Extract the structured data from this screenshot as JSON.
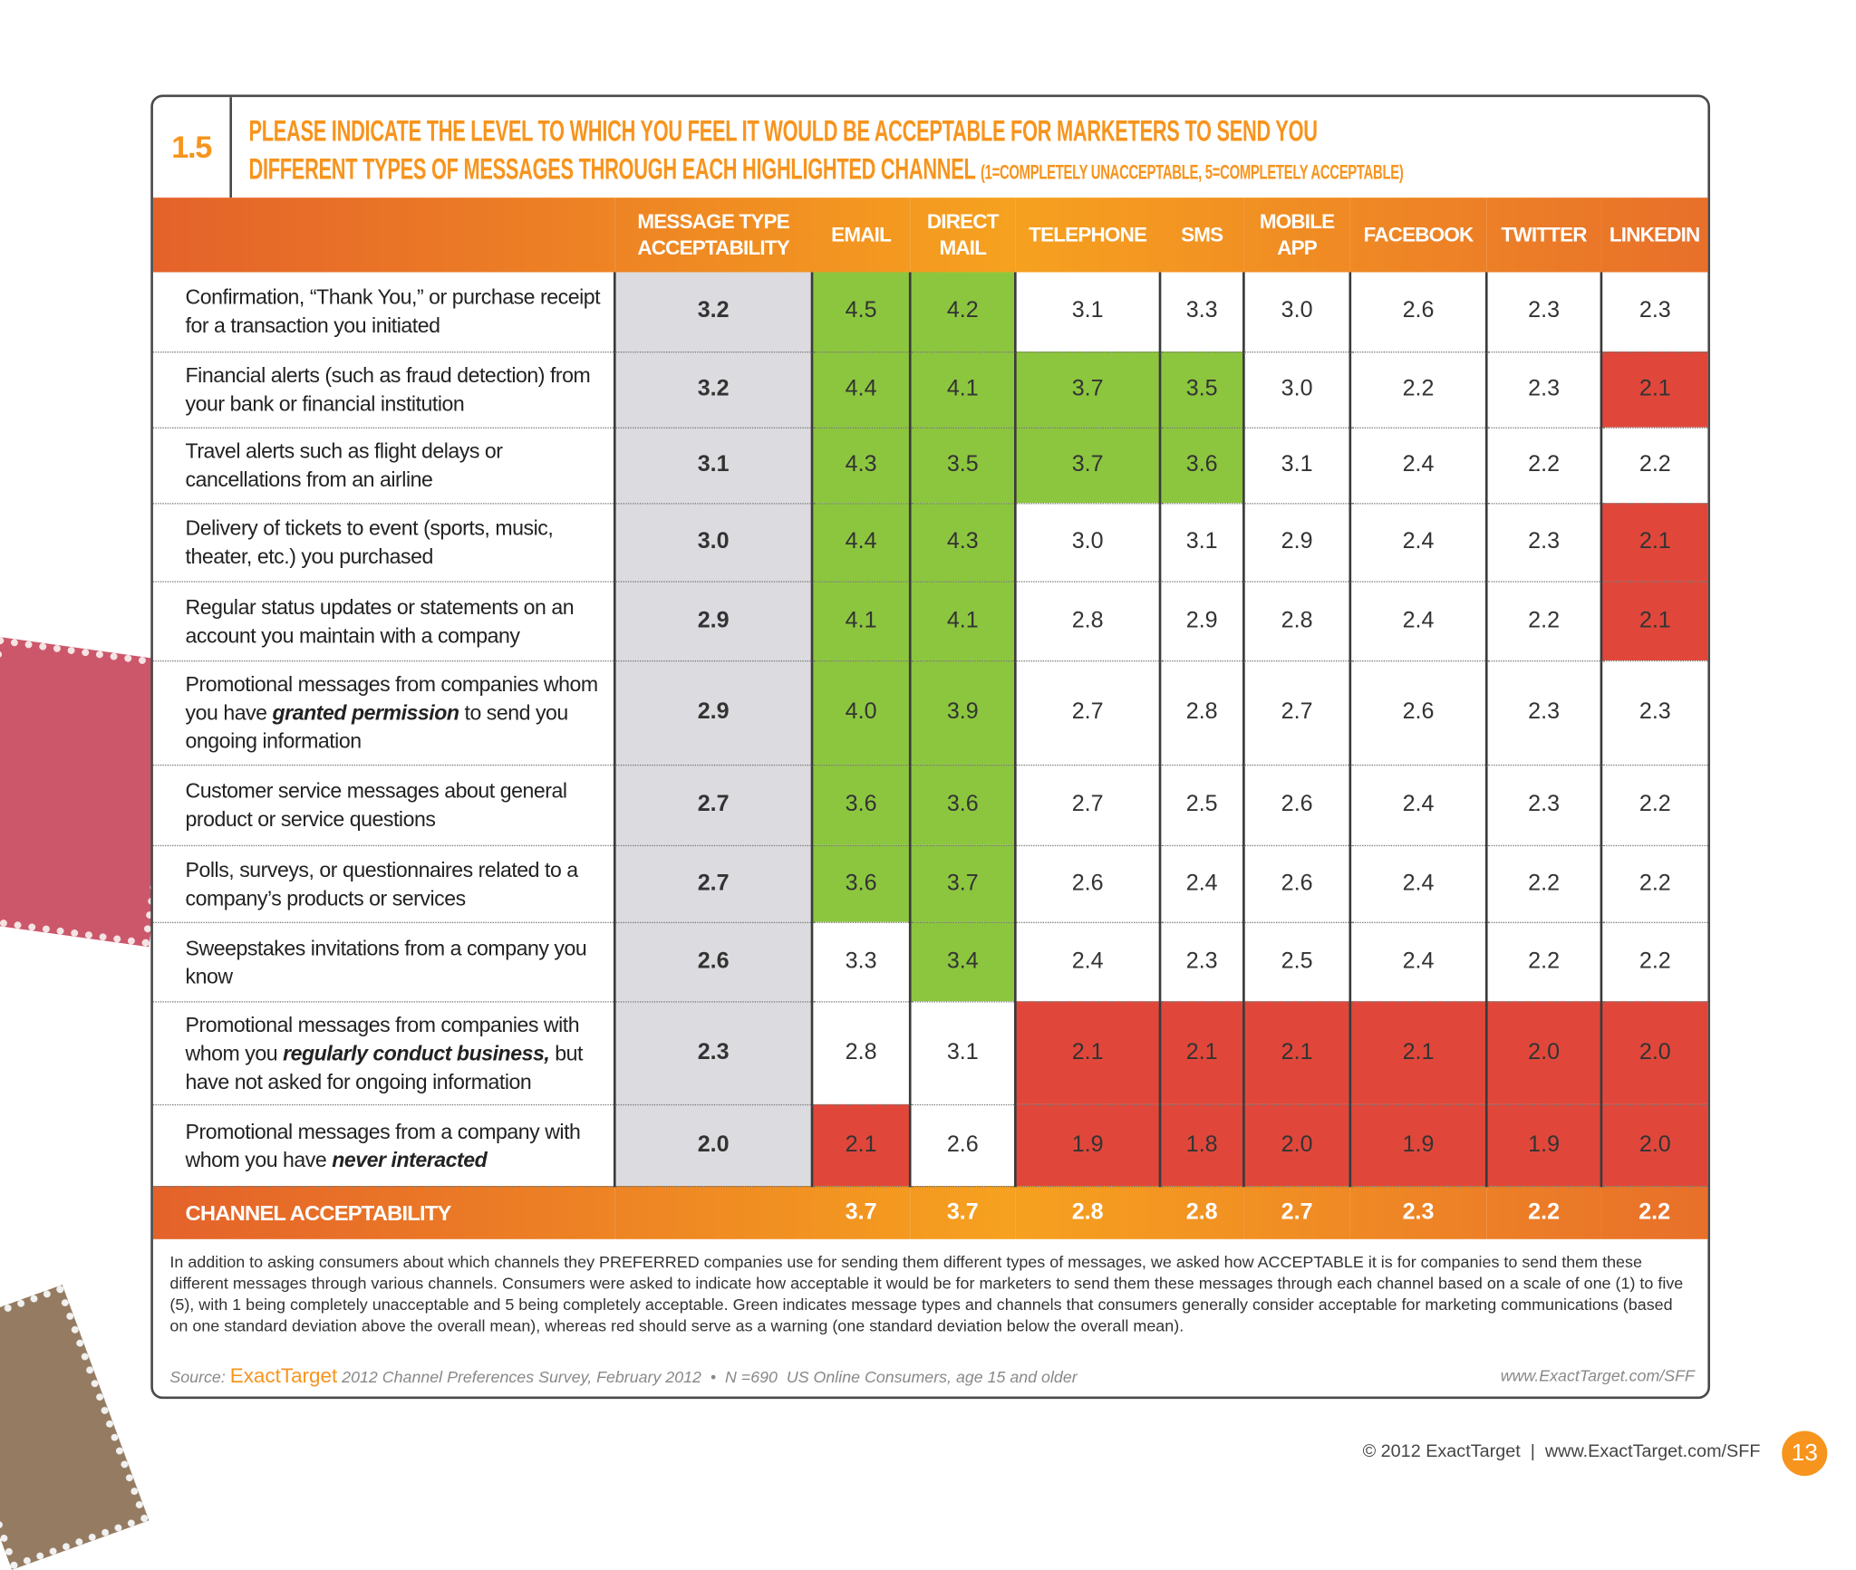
{
  "header": {
    "number": "1.5",
    "title_lines": [
      "PLEASE INDICATE THE LEVEL TO WHICH YOU FEEL IT WOULD BE ACCEPTABLE FOR MARKETERS TO SEND YOU",
      "DIFFERENT TYPES OF MESSAGES THROUGH EACH HIGHLIGHTED CHANNEL"
    ],
    "scale_note": "(1=COMPLETELY UNACCEPTABLE, 5=COMPLETELY ACCEPTABLE)"
  },
  "highlight_colors": {
    "green": "#8cc63f",
    "red": "#e0473a",
    "gray": "#dcdce0"
  },
  "table": {
    "columns": [
      "MESSAGE TYPE ACCEPTABILITY",
      "EMAIL",
      "DIRECT MAIL",
      "TELEPHONE",
      "SMS",
      "MOBILE APP",
      "FACEBOOK",
      "TWITTER",
      "LINKEDIN"
    ],
    "rows": [
      {
        "label": [
          {
            "text": "Confirmation, “Thank You,” or purchase receipt for a transaction you initiated"
          }
        ],
        "type_value": "3.2",
        "values": [
          "4.5",
          "4.2",
          "3.1",
          "3.3",
          "3.0",
          "2.6",
          "2.3",
          "2.3"
        ],
        "highlights": [
          "green",
          "green",
          null,
          null,
          null,
          null,
          null,
          null
        ]
      },
      {
        "label": [
          {
            "text": "Financial alerts (such as fraud detection) from your bank or financial institution"
          }
        ],
        "type_value": "3.2",
        "values": [
          "4.4",
          "4.1",
          "3.7",
          "3.5",
          "3.0",
          "2.2",
          "2.3",
          "2.1"
        ],
        "highlights": [
          "green",
          "green",
          "green",
          "green",
          null,
          null,
          null,
          "red"
        ]
      },
      {
        "label": [
          {
            "text": "Travel alerts such as flight delays or cancellations from an airline"
          }
        ],
        "type_value": "3.1",
        "values": [
          "4.3",
          "3.5",
          "3.7",
          "3.6",
          "3.1",
          "2.4",
          "2.2",
          "2.2"
        ],
        "highlights": [
          "green",
          "green",
          "green",
          "green",
          null,
          null,
          null,
          null
        ]
      },
      {
        "label": [
          {
            "text": "Delivery of tickets to event (sports, music, theater, etc.) you purchased"
          }
        ],
        "type_value": "3.0",
        "values": [
          "4.4",
          "4.3",
          "3.0",
          "3.1",
          "2.9",
          "2.4",
          "2.3",
          "2.1"
        ],
        "highlights": [
          "green",
          "green",
          null,
          null,
          null,
          null,
          null,
          "red"
        ]
      },
      {
        "label": [
          {
            "text": "Regular status updates or statements on an account you maintain with a company"
          }
        ],
        "type_value": "2.9",
        "values": [
          "4.1",
          "4.1",
          "2.8",
          "2.9",
          "2.8",
          "2.4",
          "2.2",
          "2.1"
        ],
        "highlights": [
          "green",
          "green",
          null,
          null,
          null,
          null,
          null,
          "red"
        ]
      },
      {
        "label": [
          {
            "text": "Promotional messages from companies whom you have "
          },
          {
            "text": "granted permission",
            "em": true
          },
          {
            "text": " to send you ongoing information"
          }
        ],
        "type_value": "2.9",
        "values": [
          "4.0",
          "3.9",
          "2.7",
          "2.8",
          "2.7",
          "2.6",
          "2.3",
          "2.3"
        ],
        "highlights": [
          "green",
          "green",
          null,
          null,
          null,
          null,
          null,
          null
        ]
      },
      {
        "label": [
          {
            "text": "Customer service messages about general product or service questions"
          }
        ],
        "type_value": "2.7",
        "values": [
          "3.6",
          "3.6",
          "2.7",
          "2.5",
          "2.6",
          "2.4",
          "2.3",
          "2.2"
        ],
        "highlights": [
          "green",
          "green",
          null,
          null,
          null,
          null,
          null,
          null
        ]
      },
      {
        "label": [
          {
            "text": "Polls, surveys, or questionnaires related to a company’s products or services"
          }
        ],
        "type_value": "2.7",
        "values": [
          "3.6",
          "3.7",
          "2.6",
          "2.4",
          "2.6",
          "2.4",
          "2.2",
          "2.2"
        ],
        "highlights": [
          "green",
          "green",
          null,
          null,
          null,
          null,
          null,
          null
        ]
      },
      {
        "label": [
          {
            "text": "Sweepstakes invitations from a company you know"
          }
        ],
        "type_value": "2.6",
        "values": [
          "3.3",
          "3.4",
          "2.4",
          "2.3",
          "2.5",
          "2.4",
          "2.2",
          "2.2"
        ],
        "highlights": [
          null,
          "green",
          null,
          null,
          null,
          null,
          null,
          null
        ]
      },
      {
        "label": [
          {
            "text": "Promotional messages from companies with whom you "
          },
          {
            "text": "regularly conduct business,",
            "em": true
          },
          {
            "text": " but have not asked for ongoing information"
          }
        ],
        "type_value": "2.3",
        "values": [
          "2.8",
          "3.1",
          "2.1",
          "2.1",
          "2.1",
          "2.1",
          "2.0",
          "2.0"
        ],
        "highlights": [
          null,
          null,
          "red",
          "red",
          "red",
          "red",
          "red",
          "red"
        ]
      },
      {
        "label": [
          {
            "text": "Promotional messages from a company with whom you have "
          },
          {
            "text": "never interacted",
            "em": true
          }
        ],
        "type_value": "2.0",
        "values": [
          "2.1",
          "2.6",
          "1.9",
          "1.8",
          "2.0",
          "1.9",
          "1.9",
          "2.0"
        ],
        "highlights": [
          "red",
          null,
          "red",
          "red",
          "red",
          "red",
          "red",
          "red"
        ]
      }
    ],
    "footer": {
      "label": "CHANNEL ACCEPTABILITY",
      "values": [
        "3.7",
        "3.7",
        "2.8",
        "2.8",
        "2.7",
        "2.3",
        "2.2",
        "2.2"
      ]
    }
  },
  "note": "In addition to asking consumers about which channels they PREFERRED companies use for sending them different types of messages, we asked how ACCEPTABLE it is for companies to send them these different messages through various channels. Consumers were asked to indicate how acceptable it would be for marketers to send them these messages through each channel based on a scale of one (1) to five (5), with 1 being completely unacceptable and 5 being completely acceptable. Green indicates message types and channels that consumers generally consider acceptable for marketing communications (based on one standard deviation above the overall mean), whereas red should serve as a warning (one standard deviation below the overall mean).",
  "source": {
    "prefix": "Source:",
    "brand": "ExactTarget",
    "text": "2012 Channel Preferences Survey, February 2012  •  N =690  US Online Consumers, age 15 and older",
    "url": "www.ExactTarget.com/SFF"
  },
  "page_footer": {
    "copyright": "© 2012 ExactTarget  |  www.ExactTarget.com/SFF",
    "page": "13"
  }
}
